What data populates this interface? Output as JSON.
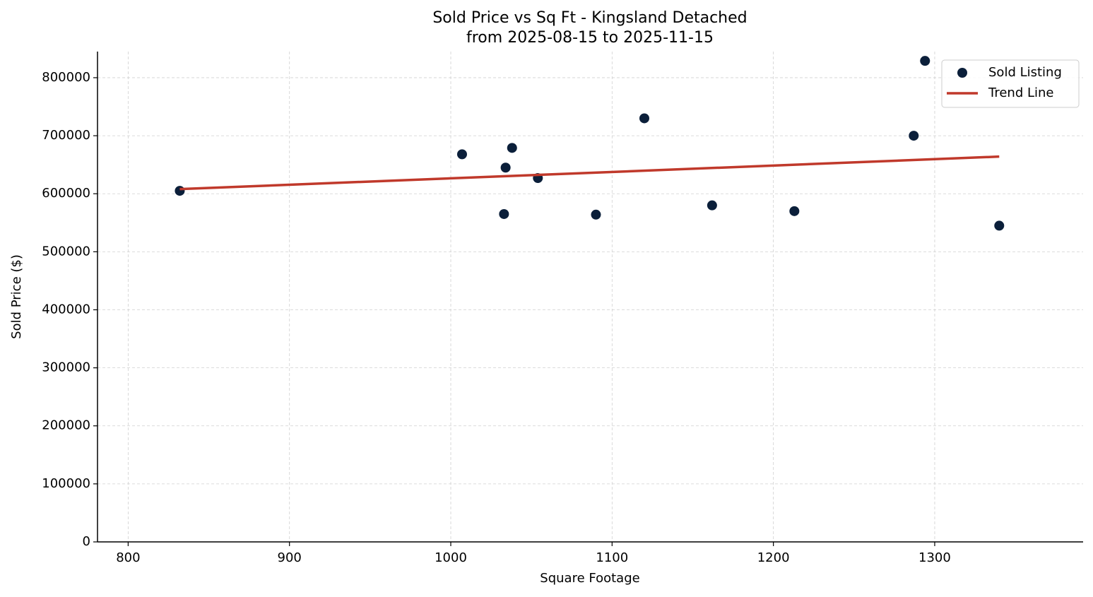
{
  "chart_data": {
    "type": "scatter",
    "title": "Sold Price vs Sq Ft - Kingsland Detached",
    "subtitle": "from 2025-08-15 to 2025-11-15",
    "x_label": "Square Footage",
    "y_label": "Sold Price ($)",
    "xlim": [
      781,
      1392
    ],
    "ylim": [
      0,
      845000
    ],
    "xticks": [
      800,
      900,
      1000,
      1100,
      1200,
      1300
    ],
    "yticks": [
      0,
      100000,
      200000,
      300000,
      400000,
      500000,
      600000,
      700000,
      800000
    ],
    "grid": true,
    "legend": "upper right",
    "series": [
      {
        "name": "Sold Listing",
        "kind": "scatter",
        "color": "#0b1f3a",
        "x": [
          832,
          1007,
          1034,
          1038,
          1033,
          1054,
          1090,
          1120,
          1162,
          1213,
          1287,
          1294,
          1340
        ],
        "values": [
          605000,
          668000,
          645000,
          679000,
          565000,
          627000,
          564000,
          730000,
          580000,
          570000,
          700000,
          829000,
          545000
        ]
      },
      {
        "name": "Trend Line",
        "kind": "line",
        "color": "#c0392b",
        "x": [
          832,
          1340
        ],
        "values": [
          608000,
          664000
        ]
      }
    ]
  }
}
